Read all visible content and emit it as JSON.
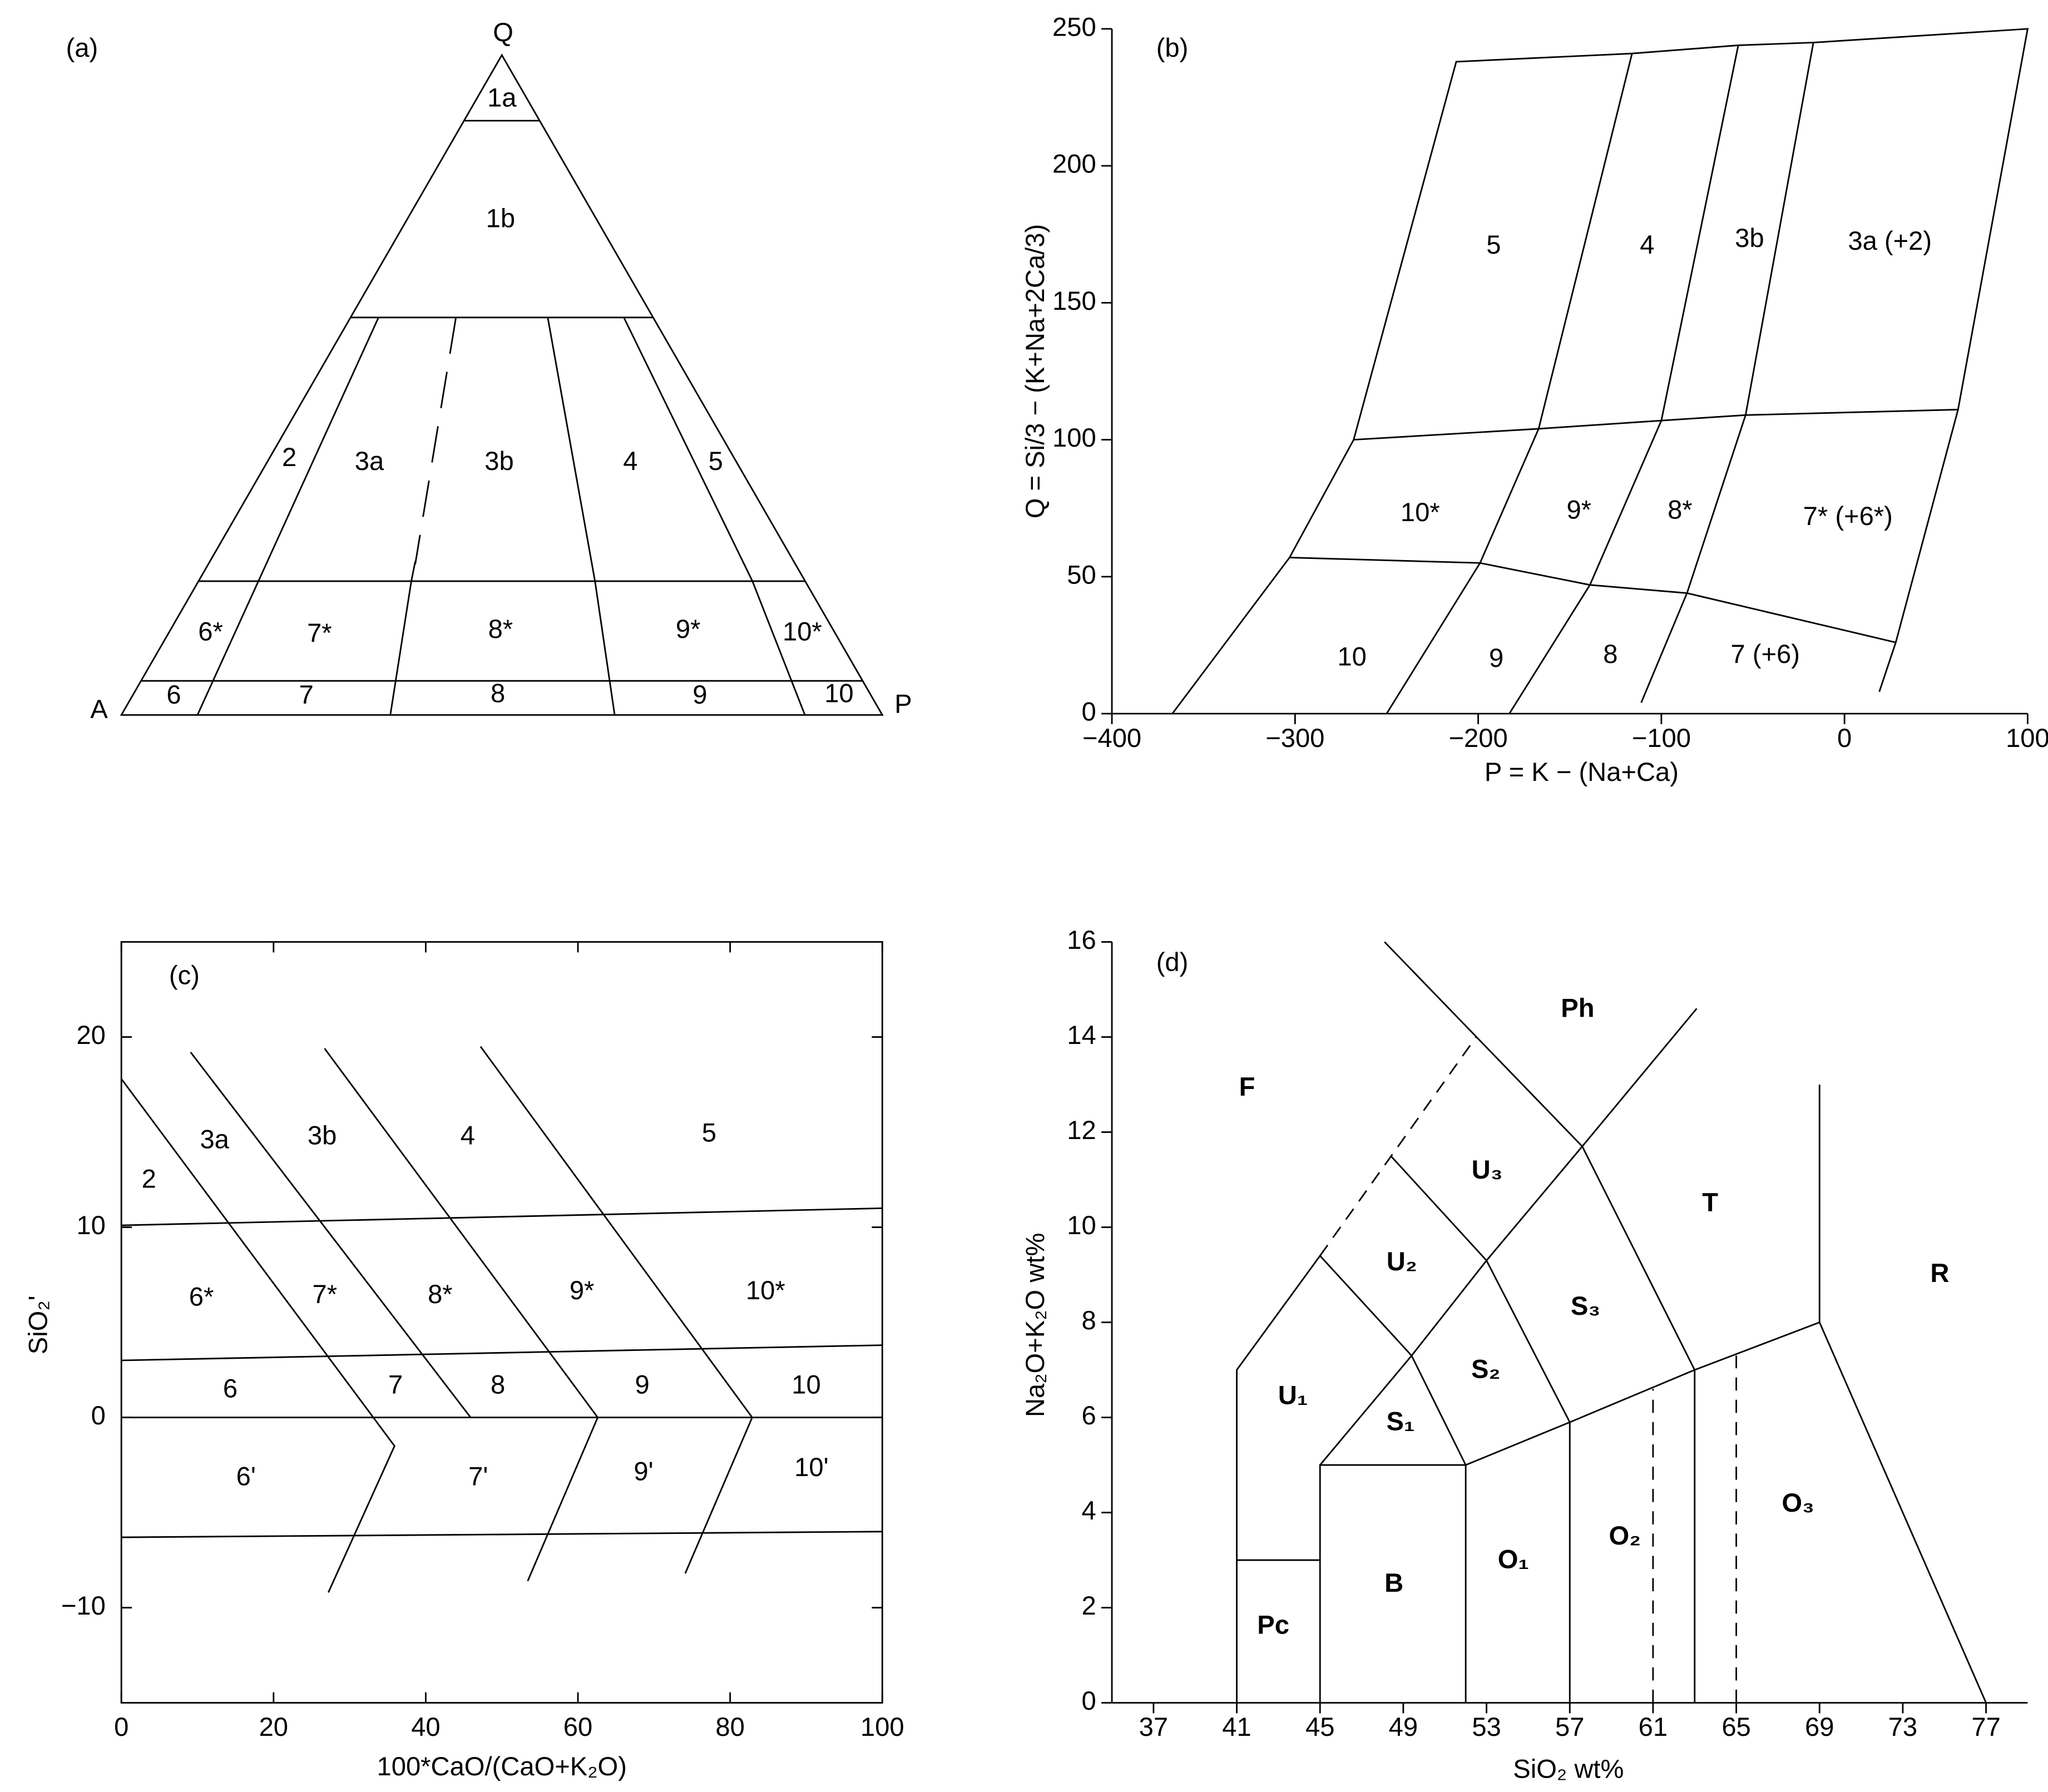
{
  "chart_data": [
    {
      "type": "ternary",
      "panel_label": "(a)",
      "vertex_labels": [
        "Q",
        "A",
        "P"
      ],
      "region_labels": [
        "1a",
        "1b",
        "2",
        "3a",
        "3b",
        "4",
        "5",
        "6*",
        "7*",
        "8*",
        "9*",
        "10*",
        "6",
        "7",
        "8",
        "9",
        "10"
      ]
    },
    {
      "type": "classification",
      "panel_label": "(b)",
      "xlabel": "P = K − (Na+Ca)",
      "ylabel": "Q = Si/3 − (K+Na+2Ca/3)",
      "xlim": [
        -400,
        100
      ],
      "ylim": [
        0,
        250
      ],
      "xticks": [
        {
          "value": -400,
          "label": "−400"
        },
        {
          "value": -300,
          "label": "−300"
        },
        {
          "value": -200,
          "label": "−200"
        },
        {
          "value": -100,
          "label": "−100"
        },
        0,
        100
      ],
      "yticks": [
        0,
        50,
        100,
        150,
        200,
        250
      ],
      "frame": false,
      "bold_labels": false,
      "boundaries": [
        {
          "points": [
            [
              -367,
              0
            ],
            [
              -303,
              57
            ],
            [
              -268,
              100
            ],
            [
              -212,
              238
            ],
            [
              -116,
              241
            ],
            [
              -58,
              244
            ],
            [
              -17,
              245
            ],
            [
              100,
              250
            ],
            [
              62,
              111
            ],
            [
              28,
              26
            ],
            [
              19,
              8
            ]
          ],
          "dashed": false
        },
        {
          "points": [
            [
              -268,
              100
            ],
            [
              -167,
              104
            ],
            [
              -100,
              107
            ],
            [
              -54,
              109
            ],
            [
              62,
              111
            ]
          ],
          "dashed": false
        },
        {
          "points": [
            [
              -303,
              57
            ],
            [
              -199,
              55
            ],
            [
              -139,
              47
            ],
            [
              -86,
              44
            ],
            [
              28,
              26
            ]
          ],
          "dashed": false
        },
        {
          "points": [
            [
              -116,
              241
            ],
            [
              -167,
              104
            ],
            [
              -199,
              55
            ],
            [
              -250,
              0
            ]
          ],
          "dashed": false
        },
        {
          "points": [
            [
              -58,
              244
            ],
            [
              -100,
              107
            ],
            [
              -139,
              47
            ],
            [
              -183,
              0
            ]
          ],
          "dashed": false
        },
        {
          "points": [
            [
              -17,
              245
            ],
            [
              -54,
              109
            ],
            [
              -86,
              44
            ],
            [
              -111,
              4
            ]
          ],
          "dashed": false
        }
      ],
      "region_labels": [
        "5",
        "4",
        "3b",
        "3a (+2)",
        "10*",
        "9*",
        "8*",
        "7* (+6*)",
        "10",
        "9",
        "8",
        "7 (+6)"
      ]
    },
    {
      "type": "classification",
      "panel_label": "(c)",
      "xlabel": "100*CaO/(CaO+K₂O)",
      "ylabel": "SiO₂'",
      "xlim": [
        0,
        100
      ],
      "ylim": [
        -15,
        25
      ],
      "xticks": [
        0,
        20,
        40,
        60,
        80,
        100
      ],
      "yticks": [
        {
          "value": -10,
          "label": "−10"
        },
        0,
        10,
        20
      ],
      "frame": true,
      "bold_labels": false,
      "boundaries": [
        {
          "points": [
            [
              0,
              10.1
            ],
            [
              100,
              11
            ]
          ],
          "dashed": false
        },
        {
          "points": [
            [
              0,
              3
            ],
            [
              100,
              3.8
            ]
          ],
          "dashed": false
        },
        {
          "points": [
            [
              0,
              0
            ],
            [
              100,
              0
            ]
          ],
          "dashed": false
        },
        {
          "points": [
            [
              0,
              -6.3
            ],
            [
              100,
              -6
            ]
          ],
          "dashed": false
        },
        {
          "points": [
            [
              0,
              17.8
            ],
            [
              35.9,
              -1.5
            ],
            [
              27.2,
              -9.2
            ]
          ],
          "dashed": false
        },
        {
          "points": [
            [
              9.1,
              19.2
            ],
            [
              45.9,
              0
            ]
          ],
          "dashed": false
        },
        {
          "points": [
            [
              26.7,
              19.4
            ],
            [
              62.6,
              0
            ],
            [
              53.4,
              -8.6
            ]
          ],
          "dashed": false
        },
        {
          "points": [
            [
              47.2,
              19.5
            ],
            [
              82.9,
              0
            ],
            [
              74.1,
              -8.2
            ]
          ],
          "dashed": false
        }
      ],
      "region_labels": [
        "2",
        "3a",
        "3b",
        "4",
        "5",
        "6*",
        "7*",
        "8*",
        "9*",
        "10*",
        "6",
        "7",
        "8",
        "9",
        "10",
        "6'",
        "7'",
        "9'",
        "10'"
      ]
    },
    {
      "type": "classification",
      "panel_label": "(d)",
      "xlabel": "SiO₂ wt%",
      "ylabel": "Na₂O+K₂O wt%",
      "xlim": [
        35,
        79
      ],
      "ylim": [
        0,
        16
      ],
      "xticks": [
        37,
        41,
        45,
        49,
        53,
        57,
        61,
        65,
        69,
        73,
        77
      ],
      "yticks": [
        0,
        2,
        4,
        6,
        8,
        10,
        12,
        14,
        16
      ],
      "frame": false,
      "bold_labels": true,
      "boundaries": [
        {
          "points": [
            [
              41,
              0
            ],
            [
              41,
              7
            ],
            [
              45,
              9.4
            ],
            [
              49.4,
              7.3
            ],
            [
              53,
              9.3
            ],
            [
              57.6,
              11.7
            ],
            [
              63.1,
              14.6
            ]
          ],
          "dashed": false
        },
        {
          "points": [
            [
              41,
              3
            ],
            [
              45,
              3
            ]
          ],
          "dashed": false
        },
        {
          "points": [
            [
              45,
              0
            ],
            [
              45,
              5
            ],
            [
              52,
              5
            ],
            [
              52,
              0
            ]
          ],
          "dashed": false
        },
        {
          "points": [
            [
              45,
              5
            ],
            [
              49.4,
              7.3
            ],
            [
              52,
              5
            ],
            [
              57,
              5.9
            ],
            [
              63,
              7
            ],
            [
              69,
              8
            ],
            [
              77,
              0
            ]
          ],
          "dashed": false
        },
        {
          "points": [
            [
              48.4,
              11.5
            ],
            [
              53,
              9.3
            ],
            [
              57,
              5.9
            ],
            [
              57,
              0
            ]
          ],
          "dashed": false
        },
        {
          "points": [
            [
              48.1,
              16
            ],
            [
              57.6,
              11.7
            ],
            [
              63,
              7
            ],
            [
              63,
              0
            ]
          ],
          "dashed": false
        },
        {
          "points": [
            [
              69,
              8
            ],
            [
              69,
              13
            ]
          ],
          "dashed": false
        },
        {
          "points": [
            [
              45,
              9.4
            ],
            [
              52.5,
              14
            ]
          ],
          "dashed": true
        },
        {
          "points": [
            [
              61,
              0
            ],
            [
              61,
              6.6
            ]
          ],
          "dashed": true
        },
        {
          "points": [
            [
              65,
              0
            ],
            [
              65,
              7.3
            ]
          ],
          "dashed": true
        }
      ],
      "region_labels": [
        "F",
        "Ph",
        "U₃",
        "T",
        "U₂",
        "S₃",
        "R",
        "U₁",
        "S₂",
        "S₁",
        "O₃",
        "O₂",
        "O₁",
        "B",
        "Pc"
      ]
    }
  ]
}
